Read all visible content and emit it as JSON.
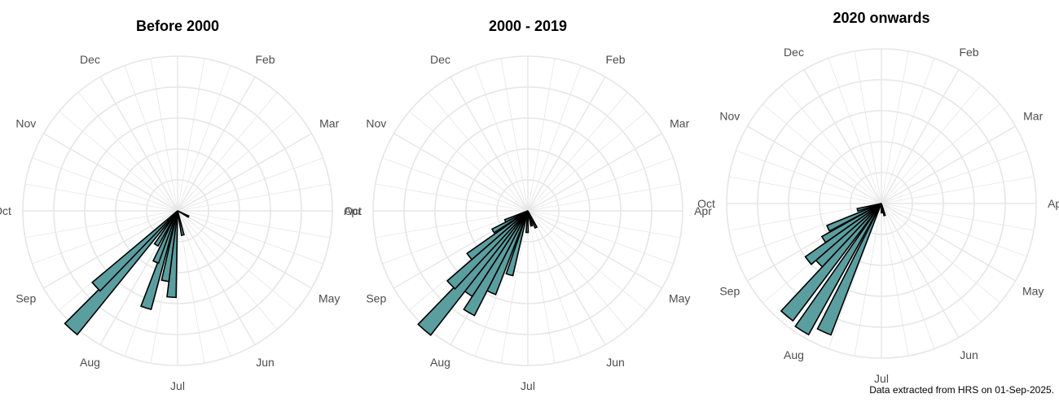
{
  "chart_data": [
    {
      "type": "polar-histogram",
      "title": "Before 2000",
      "month_labels": [
        "Feb",
        "Mar",
        "Apr",
        "May",
        "Jun",
        "Jul",
        "Aug",
        "Sep",
        "Oct",
        "Nov",
        "Dec"
      ],
      "rmax": 10,
      "grid": true,
      "bins": [
        {
          "angle_deg": 184,
          "value": 5.6
        },
        {
          "angle_deg": 190,
          "value": 4.6
        },
        {
          "angle_deg": 198,
          "value": 6.6
        },
        {
          "angle_deg": 203,
          "value": 3.6
        },
        {
          "angle_deg": 212,
          "value": 2.6
        },
        {
          "angle_deg": 222,
          "value": 10.3
        },
        {
          "angle_deg": 227,
          "value": 7.2
        },
        {
          "angle_deg": 168,
          "value": 1.6
        },
        {
          "angle_deg": 118,
          "value": 0.8
        }
      ]
    },
    {
      "type": "polar-histogram",
      "title": "2000 - 2019",
      "month_labels": [
        "Feb",
        "Mar",
        "Apr",
        "May",
        "Jun",
        "Jul",
        "Aug",
        "Sep",
        "Oct",
        "Nov",
        "Dec"
      ],
      "rmax": 10,
      "grid": true,
      "bins": [
        {
          "angle_deg": 154,
          "value": 1.2
        },
        {
          "angle_deg": 166,
          "value": 1.0
        },
        {
          "angle_deg": 182,
          "value": 1.4
        },
        {
          "angle_deg": 196,
          "value": 4.3
        },
        {
          "angle_deg": 204,
          "value": 5.8
        },
        {
          "angle_deg": 210,
          "value": 7.6
        },
        {
          "angle_deg": 216,
          "value": 6.6
        },
        {
          "angle_deg": 221,
          "value": 10.2
        },
        {
          "angle_deg": 226,
          "value": 6.9
        },
        {
          "angle_deg": 232,
          "value": 4.8
        },
        {
          "angle_deg": 240,
          "value": 2.6
        },
        {
          "angle_deg": 246,
          "value": 1.6
        }
      ]
    },
    {
      "type": "polar-histogram",
      "title": "2020 onwards",
      "month_labels": [
        "Dec",
        "Feb",
        "Mar",
        "Apr",
        "May",
        "Jun",
        "Jul",
        "Aug",
        "Sep",
        "Oct",
        "Nov"
      ],
      "rmax": 10,
      "grid": true,
      "bins": [
        {
          "angle_deg": 165,
          "value": 0.8
        },
        {
          "angle_deg": 178,
          "value": 0.6
        },
        {
          "angle_deg": 204,
          "value": 9.1
        },
        {
          "angle_deg": 212,
          "value": 9.7
        },
        {
          "angle_deg": 220,
          "value": 9.5
        },
        {
          "angle_deg": 226,
          "value": 5.6
        },
        {
          "angle_deg": 232,
          "value": 6.0
        },
        {
          "angle_deg": 238,
          "value": 4.4
        },
        {
          "angle_deg": 245,
          "value": 3.8
        },
        {
          "angle_deg": 255,
          "value": 1.6
        }
      ]
    }
  ],
  "colors": {
    "bar_fill": "#5b9ea0",
    "bar_stroke": "#000000",
    "grid": "#e6e6e6",
    "label": "#4d4d4d"
  },
  "caption": "Data extracted from HRS on 01-Sep-2025."
}
